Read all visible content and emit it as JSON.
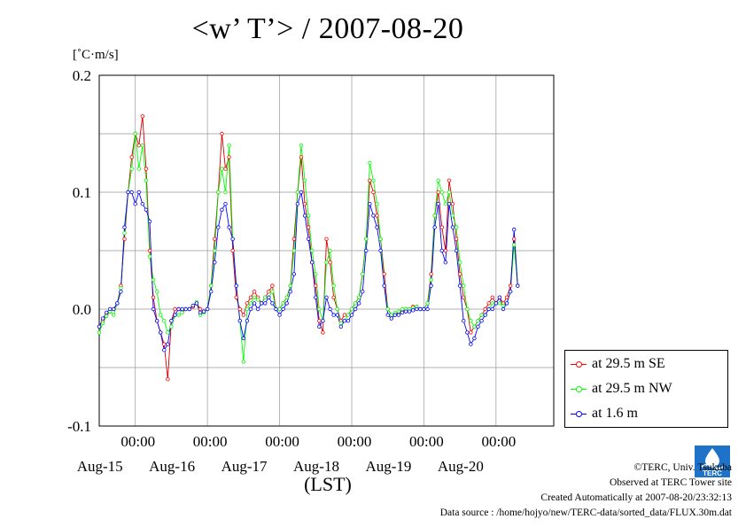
{
  "title": "<w’ T’> / 2007-08-20",
  "y_unit": "[˚C·m/s]",
  "x_unit": "(LST)",
  "legend": [
    {
      "label": "at 29.5 m SE",
      "color": "#ff0000"
    },
    {
      "label": "at 29.5 m NW",
      "color": "#00ff00"
    },
    {
      "label": "at 1.6 m",
      "color": "#0000ff"
    }
  ],
  "footer": {
    "copyright": "©TERC, Univ. Tsukuba",
    "observed": "Observed at TERC Tower site",
    "created": "Created Automatically at 2007-08-20/23:32:13",
    "source": "Data source : /home/hojyo/new/TERC-data/sorted_data/FLUX.30m.dat"
  },
  "logo_text": "TERC",
  "chart_data": {
    "type": "line",
    "title": "<w’ T’> / 2007-08-20",
    "ylabel": "[˚C·m/s]",
    "xlabel": "(LST)",
    "ylim": [
      -0.1,
      0.2
    ],
    "xlim_days": [
      14.5,
      20.8
    ],
    "yticks": [
      {
        "value": -0.1,
        "label": "-0.1"
      },
      {
        "value": 0.0,
        "label": "0.0"
      },
      {
        "value": 0.1,
        "label": "0.1"
      },
      {
        "value": 0.2,
        "label": "0.2"
      }
    ],
    "xticks": [
      {
        "value": 15.0,
        "time": "00:00",
        "date": "Aug-15"
      },
      {
        "value": 16.0,
        "time": "00:00",
        "date": "Aug-16"
      },
      {
        "value": 17.0,
        "time": "00:00",
        "date": "Aug-17"
      },
      {
        "value": 18.0,
        "time": "00:00",
        "date": "Aug-18"
      },
      {
        "value": 19.0,
        "time": "00:00",
        "date": "Aug-19"
      },
      {
        "value": 20.0,
        "time": "00:00",
        "date": "Aug-20"
      }
    ],
    "grid": true,
    "x": [
      14.5,
      14.55,
      14.6,
      14.65,
      14.7,
      14.75,
      14.8,
      14.85,
      14.9,
      14.95,
      15.0,
      15.05,
      15.1,
      15.15,
      15.2,
      15.25,
      15.3,
      15.35,
      15.4,
      15.45,
      15.5,
      15.55,
      15.6,
      15.65,
      15.7,
      15.75,
      15.8,
      15.85,
      15.9,
      15.95,
      16.0,
      16.05,
      16.1,
      16.15,
      16.2,
      16.25,
      16.3,
      16.35,
      16.4,
      16.45,
      16.5,
      16.55,
      16.6,
      16.65,
      16.7,
      16.75,
      16.8,
      16.85,
      16.9,
      16.95,
      17.0,
      17.05,
      17.1,
      17.15,
      17.2,
      17.25,
      17.3,
      17.35,
      17.4,
      17.45,
      17.5,
      17.55,
      17.6,
      17.65,
      17.7,
      17.75,
      17.8,
      17.85,
      17.9,
      17.95,
      18.0,
      18.05,
      18.1,
      18.15,
      18.2,
      18.25,
      18.3,
      18.35,
      18.4,
      18.45,
      18.5,
      18.55,
      18.6,
      18.65,
      18.7,
      18.75,
      18.8,
      18.85,
      18.9,
      18.95,
      19.0,
      19.05,
      19.1,
      19.15,
      19.2,
      19.25,
      19.3,
      19.35,
      19.4,
      19.45,
      19.5,
      19.55,
      19.6,
      19.65,
      19.7,
      19.75,
      19.8,
      19.85,
      19.9,
      19.95,
      20.0,
      20.05,
      20.1,
      20.15,
      20.2,
      20.25,
      20.3,
      20.35,
      20.4,
      20.45
    ],
    "series": [
      {
        "name": "at 29.5 m SE",
        "color": "#ff0000",
        "values": [
          -0.015,
          -0.01,
          -0.005,
          -0.002,
          0.0,
          0.005,
          0.02,
          0.06,
          0.1,
          0.13,
          0.15,
          0.14,
          0.165,
          0.12,
          0.05,
          0.01,
          -0.01,
          -0.02,
          -0.03,
          -0.06,
          -0.01,
          0.0,
          0.0,
          -0.002,
          0.0,
          0.0,
          0.002,
          0.005,
          0.0,
          -0.002,
          0.0,
          0.02,
          0.06,
          0.1,
          0.15,
          0.12,
          0.13,
          0.05,
          0.01,
          0.0,
          -0.005,
          0.005,
          0.01,
          0.015,
          0.01,
          0.005,
          0.01,
          0.015,
          0.02,
          0.0,
          0.0,
          0.005,
          0.01,
          0.02,
          0.06,
          0.1,
          0.13,
          0.09,
          0.07,
          0.04,
          0.02,
          -0.01,
          -0.02,
          0.06,
          0.04,
          0.01,
          0.0,
          -0.01,
          -0.005,
          -0.005,
          0.0,
          0.005,
          0.01,
          0.03,
          0.06,
          0.11,
          0.1,
          0.08,
          0.06,
          0.03,
          0.0,
          -0.005,
          -0.005,
          -0.003,
          -0.002,
          0.0,
          0.0,
          0.002,
          0.002,
          0.0,
          0.0,
          0.005,
          0.03,
          0.08,
          0.1,
          0.07,
          0.05,
          0.11,
          0.09,
          0.06,
          0.03,
          0.01,
          0.0,
          -0.02,
          -0.015,
          -0.01,
          -0.005,
          0.0,
          0.005,
          0.01,
          0.005,
          0.01,
          0.005,
          0.01,
          0.02,
          0.06,
          0.02,
          null,
          null,
          null
        ]
      },
      {
        "name": "at 29.5 m NW",
        "color": "#00ff00",
        "values": [
          -0.02,
          -0.012,
          -0.006,
          -0.002,
          -0.005,
          0.005,
          0.018,
          0.065,
          0.1,
          0.12,
          0.15,
          0.12,
          0.14,
          0.11,
          0.045,
          0.025,
          0.015,
          -0.005,
          -0.01,
          -0.02,
          -0.015,
          -0.005,
          -0.005,
          -0.003,
          0.0,
          0.0,
          0.003,
          0.006,
          -0.005,
          -0.003,
          0.0,
          0.02,
          0.05,
          0.1,
          0.12,
          0.1,
          0.14,
          0.06,
          0.02,
          -0.01,
          -0.045,
          0.0,
          0.005,
          0.01,
          0.008,
          0.005,
          0.01,
          0.01,
          0.015,
          0.0,
          0.0,
          0.005,
          0.01,
          0.02,
          0.05,
          0.1,
          0.14,
          0.11,
          0.08,
          0.05,
          0.03,
          0.0,
          -0.01,
          0.04,
          0.05,
          0.02,
          0.0,
          -0.012,
          -0.01,
          -0.005,
          0.0,
          0.005,
          0.01,
          0.03,
          0.06,
          0.125,
          0.11,
          0.09,
          0.06,
          0.02,
          0.0,
          -0.005,
          -0.003,
          -0.002,
          0.0,
          0.0,
          0.0,
          0.001,
          0.002,
          0.0,
          0.0,
          0.005,
          0.025,
          0.08,
          0.11,
          0.1,
          0.09,
          0.1,
          0.08,
          0.07,
          0.04,
          0.02,
          0.0,
          -0.01,
          -0.015,
          -0.01,
          -0.005,
          -0.005,
          0.0,
          0.005,
          0.005,
          0.005,
          0.003,
          0.005,
          0.015,
          0.055,
          0.02,
          null,
          null,
          null
        ]
      },
      {
        "name": "at 1.6 m",
        "color": "#0000ff",
        "values": [
          -0.015,
          -0.008,
          -0.003,
          0.0,
          0.0,
          0.005,
          0.015,
          0.07,
          0.1,
          0.1,
          0.09,
          0.1,
          0.09,
          0.085,
          0.075,
          0.0,
          -0.01,
          -0.02,
          -0.035,
          -0.03,
          -0.01,
          -0.005,
          0.0,
          0.0,
          0.0,
          0.0,
          0.003,
          0.005,
          -0.003,
          -0.002,
          0.0,
          0.015,
          0.04,
          0.07,
          0.085,
          0.09,
          0.07,
          0.06,
          0.02,
          -0.01,
          -0.025,
          -0.01,
          0.0,
          0.005,
          0.0,
          0.005,
          0.005,
          0.01,
          0.005,
          0.0,
          -0.005,
          0.0,
          0.005,
          0.015,
          0.03,
          0.09,
          0.1,
          0.08,
          0.06,
          0.04,
          0.01,
          -0.015,
          -0.01,
          0.01,
          0.0,
          -0.005,
          -0.005,
          -0.015,
          -0.01,
          -0.01,
          -0.005,
          0.0,
          0.005,
          0.015,
          0.05,
          0.09,
          0.08,
          0.07,
          0.05,
          0.02,
          -0.005,
          -0.008,
          -0.005,
          -0.005,
          -0.003,
          -0.002,
          -0.002,
          -0.001,
          0.0,
          0.0,
          0.0,
          0.0,
          0.02,
          0.07,
          0.09,
          0.05,
          0.04,
          0.09,
          0.07,
          0.05,
          0.02,
          -0.01,
          -0.02,
          -0.03,
          -0.025,
          -0.015,
          -0.01,
          -0.005,
          0.0,
          0.0,
          0.005,
          0.01,
          0.0,
          0.005,
          0.015,
          0.068,
          0.02,
          null,
          null,
          null
        ]
      }
    ]
  }
}
